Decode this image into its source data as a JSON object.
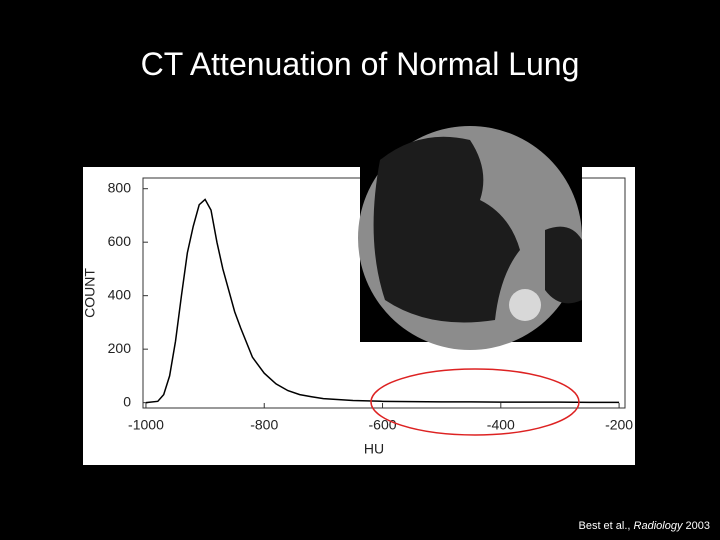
{
  "title": "CT Attenuation of Normal Lung",
  "citation": {
    "authors": "Best et al.,",
    "journal": "Radiology",
    "year": "2003"
  },
  "chart_data": {
    "type": "line",
    "x_label": "HU",
    "y_label": "COUNT",
    "x": [
      -1000,
      -980,
      -970,
      -960,
      -950,
      -940,
      -930,
      -920,
      -910,
      -900,
      -890,
      -880,
      -870,
      -860,
      -850,
      -840,
      -820,
      -800,
      -780,
      -760,
      -740,
      -720,
      -700,
      -650,
      -600,
      -550,
      -500,
      -450,
      -400,
      -350,
      -300,
      -250,
      -200
    ],
    "values": [
      0,
      5,
      30,
      100,
      230,
      400,
      560,
      660,
      740,
      760,
      720,
      600,
      500,
      420,
      340,
      280,
      170,
      110,
      70,
      45,
      30,
      22,
      15,
      8,
      5,
      4,
      3,
      3,
      2,
      2,
      2,
      1,
      1
    ],
    "color": "#000000",
    "xlim": [
      -1005,
      -190
    ],
    "ylim": [
      -20,
      840
    ],
    "xticks": [
      -1000,
      -800,
      -600,
      -400,
      -200
    ],
    "yticks": [
      0,
      200,
      400,
      600,
      800
    ],
    "grid": false
  }
}
